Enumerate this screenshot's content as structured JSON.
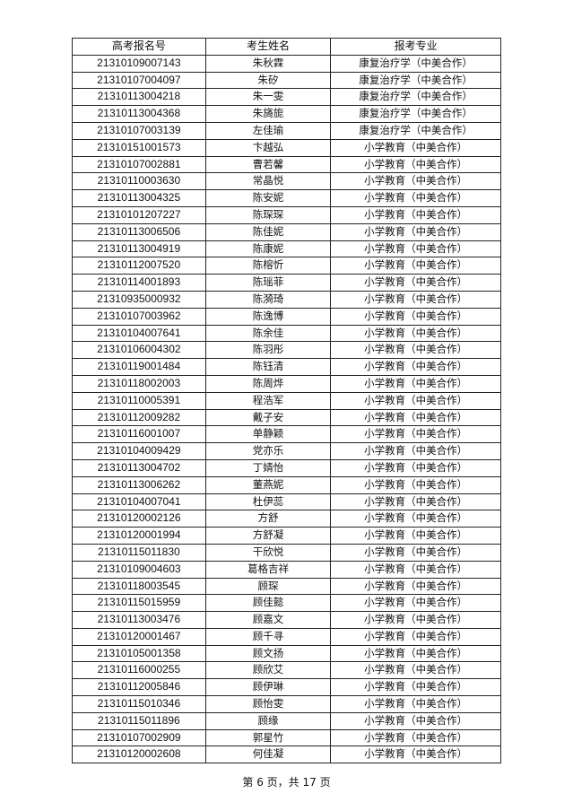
{
  "table": {
    "headers": [
      "高考报名号",
      "考生姓名",
      "报考专业"
    ],
    "rows": [
      [
        "21310109007143",
        "朱秋霖",
        "康复治疗学（中美合作）"
      ],
      [
        "21310107004097",
        "朱矽",
        "康复治疗学（中美合作）"
      ],
      [
        "21310113004218",
        "朱一雯",
        "康复治疗学（中美合作）"
      ],
      [
        "21310113004368",
        "朱旖旎",
        "康复治疗学（中美合作）"
      ],
      [
        "21310107003139",
        "左佳瑜",
        "康复治疗学（中美合作）"
      ],
      [
        "21310151001573",
        "卞越弘",
        "小学教育（中美合作）"
      ],
      [
        "21310107002881",
        "曹若馨",
        "小学教育（中美合作）"
      ],
      [
        "21310110003630",
        "常晶悦",
        "小学教育（中美合作）"
      ],
      [
        "21310113004325",
        "陈安妮",
        "小学教育（中美合作）"
      ],
      [
        "21310101207227",
        "陈琛琛",
        "小学教育（中美合作）"
      ],
      [
        "21310113006506",
        "陈佳妮",
        "小学教育（中美合作）"
      ],
      [
        "21310113004919",
        "陈康妮",
        "小学教育（中美合作）"
      ],
      [
        "21310112007520",
        "陈榕忻",
        "小学教育（中美合作）"
      ],
      [
        "21310114001893",
        "陈瑶菲",
        "小学教育（中美合作）"
      ],
      [
        "21310935000932",
        "陈漪琦",
        "小学教育（中美合作）"
      ],
      [
        "21310107003962",
        "陈逸博",
        "小学教育（中美合作）"
      ],
      [
        "21310104007641",
        "陈余佳",
        "小学教育（中美合作）"
      ],
      [
        "21310106004302",
        "陈羽彤",
        "小学教育（中美合作）"
      ],
      [
        "21310119001484",
        "陈钰清",
        "小学教育（中美合作）"
      ],
      [
        "21310118002003",
        "陈周烨",
        "小学教育（中美合作）"
      ],
      [
        "21310110005391",
        "程浩军",
        "小学教育（中美合作）"
      ],
      [
        "21310112009282",
        "戴子安",
        "小学教育（中美合作）"
      ],
      [
        "21310116001007",
        "单静颖",
        "小学教育（中美合作）"
      ],
      [
        "21310104009429",
        "党亦乐",
        "小学教育（中美合作）"
      ],
      [
        "21310113004702",
        "丁婧怡",
        "小学教育（中美合作）"
      ],
      [
        "21310113006262",
        "董燕妮",
        "小学教育（中美合作）"
      ],
      [
        "21310104007041",
        "杜伊蕊",
        "小学教育（中美合作）"
      ],
      [
        "21310120002126",
        "方舒",
        "小学教育（中美合作）"
      ],
      [
        "21310120001994",
        "方舒凝",
        "小学教育（中美合作）"
      ],
      [
        "21310115011830",
        "干欣悦",
        "小学教育（中美合作）"
      ],
      [
        "21310109004603",
        "葛格吉祥",
        "小学教育（中美合作）"
      ],
      [
        "21310118003545",
        "顾琛",
        "小学教育（中美合作）"
      ],
      [
        "21310115015959",
        "顾佳懿",
        "小学教育（中美合作）"
      ],
      [
        "21310113003476",
        "顾嘉文",
        "小学教育（中美合作）"
      ],
      [
        "21310120001467",
        "顾千寻",
        "小学教育（中美合作）"
      ],
      [
        "21310105001358",
        "顾文扬",
        "小学教育（中美合作）"
      ],
      [
        "21310116000255",
        "顾欣艾",
        "小学教育（中美合作）"
      ],
      [
        "21310112005846",
        "顾伊琳",
        "小学教育（中美合作）"
      ],
      [
        "21310115010346",
        "顾怡雯",
        "小学教育（中美合作）"
      ],
      [
        "21310115011896",
        "顾缘",
        "小学教育（中美合作）"
      ],
      [
        "21310107002909",
        "郭星竹",
        "小学教育（中美合作）"
      ],
      [
        "21310120002608",
        "何佳凝",
        "小学教育（中美合作）"
      ]
    ]
  },
  "footer": {
    "page_label": "第 6 页，共 17 页"
  }
}
